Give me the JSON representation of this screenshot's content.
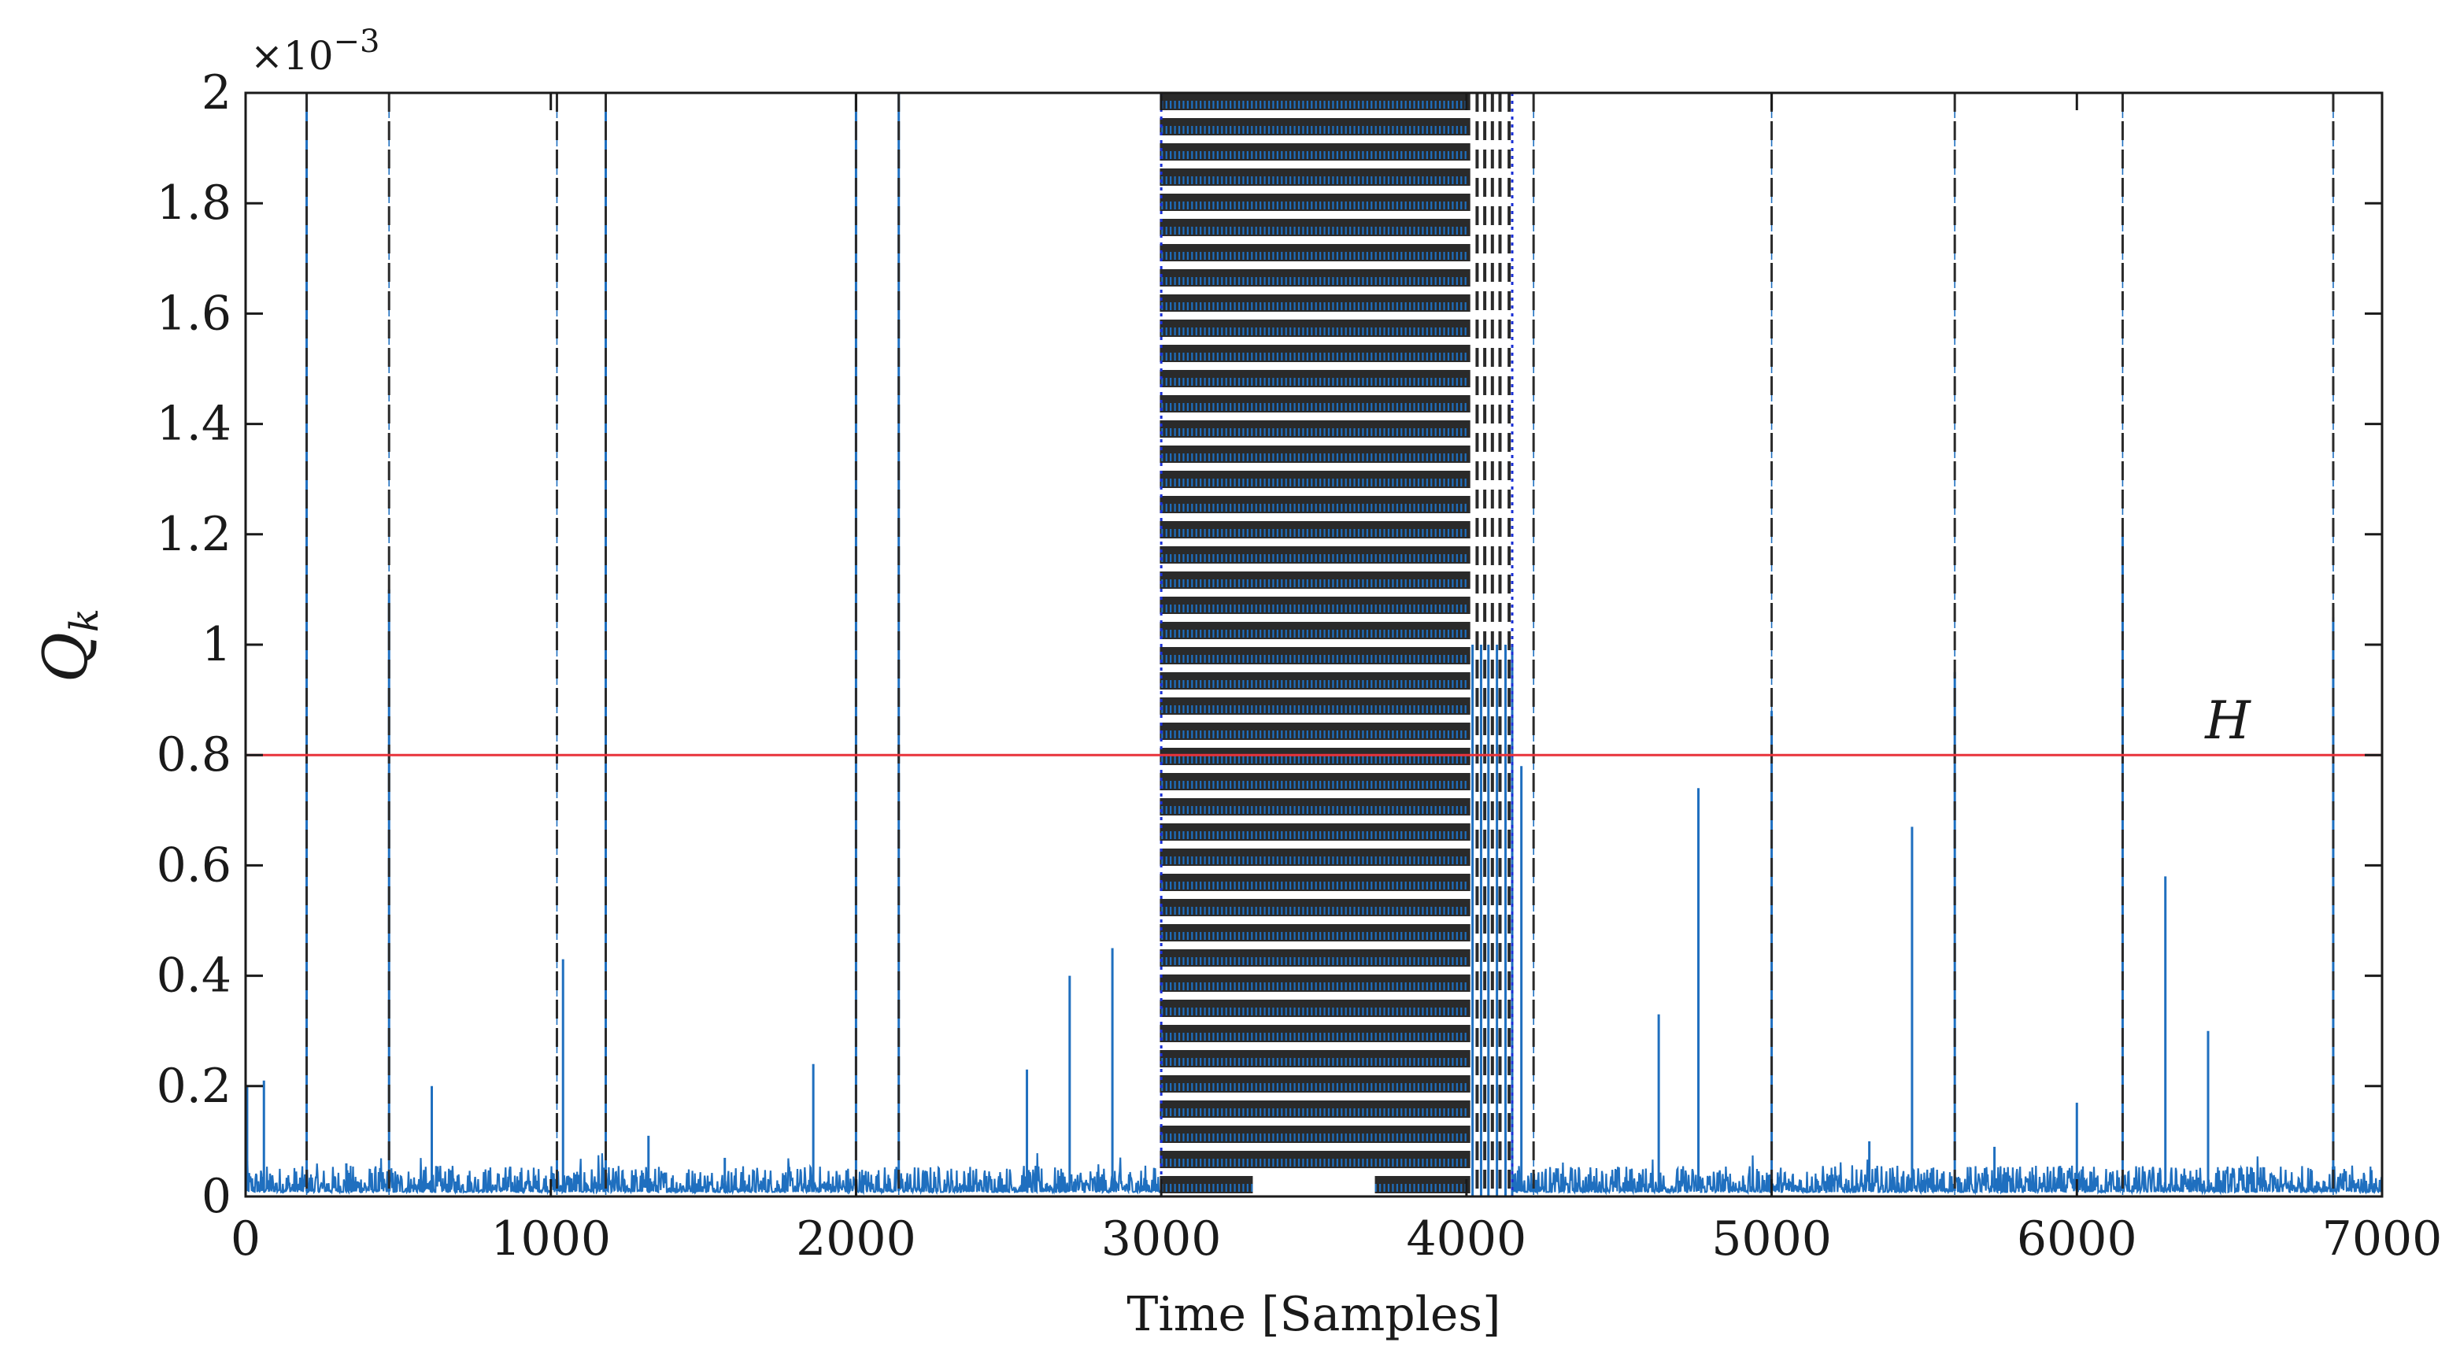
{
  "chart_data": {
    "type": "line",
    "title": "",
    "xlabel": "Time [Samples]",
    "ylabel": {
      "main": "Q",
      "subscript": "k"
    },
    "y_exponent": {
      "base": "×10",
      "power": "−3"
    },
    "xlim": [
      0,
      7000
    ],
    "ylim": [
      0,
      2
    ],
    "x_ticks": [
      0,
      1000,
      2000,
      3000,
      4000,
      5000,
      6000,
      7000
    ],
    "x_tick_labels": [
      "0",
      "1000",
      "2000",
      "3000",
      "4000",
      "5000",
      "6000",
      "7000"
    ],
    "y_ticks": [
      0,
      0.2,
      0.4,
      0.6,
      0.8,
      1,
      1.2,
      1.4,
      1.6,
      1.8,
      2
    ],
    "y_tick_labels": [
      "0",
      "0.2",
      "0.4",
      "0.6",
      "0.8",
      "1",
      "1.2",
      "1.4",
      "1.6",
      "1.8",
      "2"
    ],
    "grid": false,
    "threshold": {
      "label": "H",
      "value": 0.8,
      "color": "#e8333b"
    },
    "series": [
      {
        "color": "#1f6fbf",
        "baseline_noise_max": 0.05,
        "spikes": [
          {
            "x": 5,
            "y": 0.2
          },
          {
            "x": 60,
            "y": 0.21
          },
          {
            "x": 200,
            "y": 2.0
          },
          {
            "x": 330,
            "y": 0.06
          },
          {
            "x": 470,
            "y": 1.1
          },
          {
            "x": 610,
            "y": 0.2
          },
          {
            "x": 1020,
            "y": 0.1
          },
          {
            "x": 1040,
            "y": 0.43
          },
          {
            "x": 1180,
            "y": 2.0
          },
          {
            "x": 1320,
            "y": 0.11
          },
          {
            "x": 1570,
            "y": 0.07
          },
          {
            "x": 1860,
            "y": 0.24
          },
          {
            "x": 2000,
            "y": 2.0
          },
          {
            "x": 2140,
            "y": 2.0
          },
          {
            "x": 2560,
            "y": 0.23
          },
          {
            "x": 2700,
            "y": 0.4
          },
          {
            "x": 2840,
            "y": 0.45
          },
          {
            "x": 4180,
            "y": 0.78
          },
          {
            "x": 4630,
            "y": 0.33
          },
          {
            "x": 4760,
            "y": 0.74
          },
          {
            "x": 5000,
            "y": 0.88
          },
          {
            "x": 5320,
            "y": 0.1
          },
          {
            "x": 5460,
            "y": 0.67
          },
          {
            "x": 5600,
            "y": 0.95
          },
          {
            "x": 5730,
            "y": 0.09
          },
          {
            "x": 6000,
            "y": 0.17
          },
          {
            "x": 6150,
            "y": 1.2
          },
          {
            "x": 6290,
            "y": 0.58
          },
          {
            "x": 6430,
            "y": 0.3
          },
          {
            "x": 6840,
            "y": 1.05
          }
        ],
        "dense_region": [
          3000,
          4150
        ]
      }
    ],
    "event_lines": {
      "color": "#2a2a2a",
      "style": "dashed",
      "x": [
        200,
        470,
        1020,
        1180,
        2000,
        2140,
        4220,
        5000,
        5600,
        6150,
        6840
      ],
      "dense_region": [
        3000,
        4150
      ]
    }
  }
}
